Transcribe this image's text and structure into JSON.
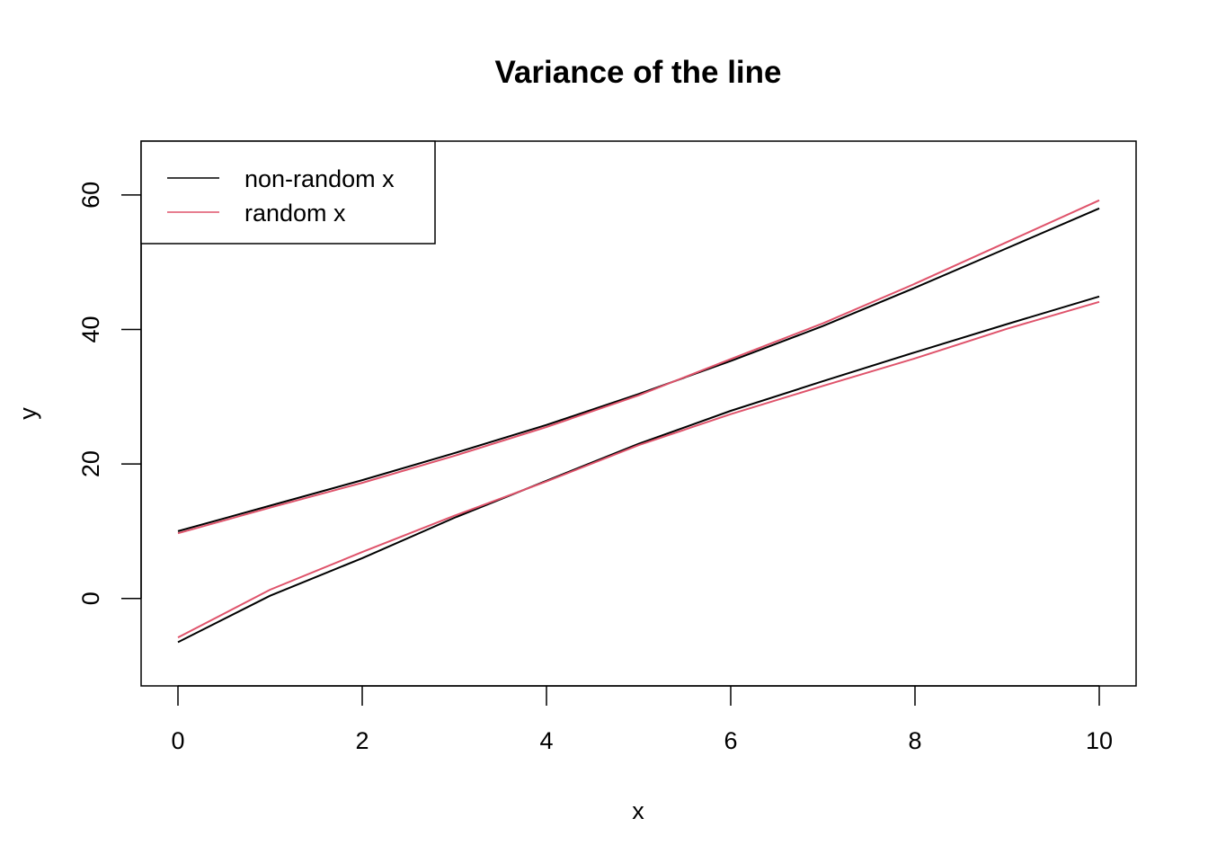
{
  "chart_data": {
    "type": "line",
    "title": "Variance of the line",
    "xlabel": "x",
    "ylabel": "y",
    "xlim": [
      -0.4,
      10.4
    ],
    "ylim": [
      -13,
      68
    ],
    "x_ticks": [
      0,
      2,
      4,
      6,
      8,
      10
    ],
    "y_ticks": [
      0,
      20,
      40,
      60
    ],
    "x_tick_labels": [
      "0",
      "2",
      "4",
      "6",
      "8",
      "10"
    ],
    "y_tick_labels": [
      "0",
      "20",
      "40",
      "60"
    ],
    "grid": false,
    "legend": {
      "position": "top-left",
      "entries": [
        {
          "label": "non-random x",
          "color": "#000000"
        },
        {
          "label": "random x",
          "color": "#DF536B"
        }
      ]
    },
    "series": [
      {
        "name": "non-random x",
        "color": "#000000",
        "x": [
          0,
          1,
          2,
          3,
          4,
          5,
          6,
          7,
          8,
          9,
          10
        ],
        "y": [
          10.0,
          13.8,
          17.6,
          21.6,
          25.8,
          30.4,
          35.3,
          40.5,
          46.2,
          52.1,
          58.0
        ]
      },
      {
        "name": "non-random x",
        "color": "#000000",
        "x": [
          0,
          1,
          2,
          3,
          4,
          5,
          6,
          7,
          8,
          9,
          10
        ],
        "y": [
          -6.5,
          0.4,
          6.0,
          12.0,
          17.5,
          23.0,
          27.9,
          32.3,
          36.6,
          40.8,
          44.9
        ]
      },
      {
        "name": "random x",
        "color": "#DF536B",
        "x": [
          0,
          1,
          2,
          3,
          4,
          5,
          6,
          7,
          8,
          9,
          10
        ],
        "y": [
          9.7,
          13.5,
          17.2,
          21.2,
          25.5,
          30.2,
          35.6,
          40.9,
          46.8,
          53.0,
          59.2
        ]
      },
      {
        "name": "random x",
        "color": "#DF536B",
        "x": [
          0,
          1,
          2,
          3,
          4,
          5,
          6,
          7,
          8,
          9,
          10
        ],
        "y": [
          -5.8,
          1.3,
          6.9,
          12.3,
          17.4,
          22.8,
          27.4,
          31.6,
          35.7,
          40.1,
          44.1
        ]
      }
    ]
  }
}
